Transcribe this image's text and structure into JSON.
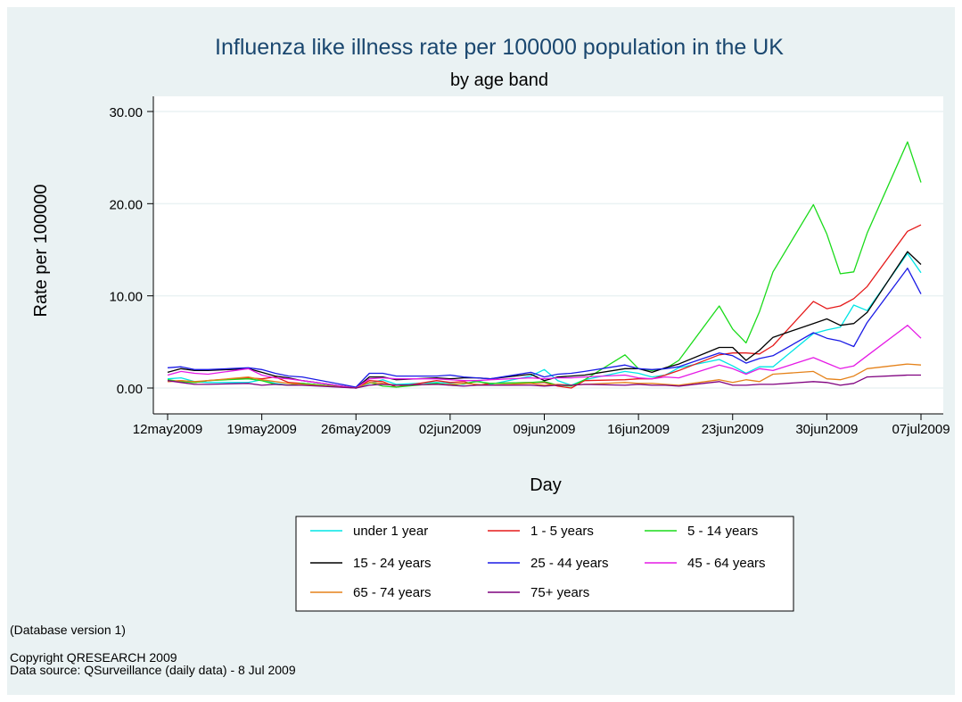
{
  "chart_data": {
    "type": "line",
    "title": "Influenza like illness rate per 100000 population in the UK",
    "subtitle": "by age band",
    "xlabel": "Day",
    "ylabel": "Rate per 100000",
    "ylim": [
      0,
      30
    ],
    "yticks": [
      "0.00",
      "10.00",
      "20.00",
      "30.00"
    ],
    "yticks_values": [
      0,
      10,
      20,
      30
    ],
    "xlim": [
      "2009-05-12",
      "2009-07-07"
    ],
    "xticks": [
      "12may2009",
      "19may2009",
      "26may2009",
      "02jun2009",
      "09jun2009",
      "16jun2009",
      "23jun2009",
      "30jun2009",
      "07jul2009"
    ],
    "grid": "horizontal",
    "legend_position": "bottom",
    "x": [
      "2009-05-12",
      "2009-05-13",
      "2009-05-14",
      "2009-05-15",
      "2009-05-18",
      "2009-05-19",
      "2009-05-20",
      "2009-05-21",
      "2009-05-22",
      "2009-05-26",
      "2009-05-27",
      "2009-05-28",
      "2009-05-29",
      "2009-06-01",
      "2009-06-02",
      "2009-06-03",
      "2009-06-04",
      "2009-06-05",
      "2009-06-08",
      "2009-06-09",
      "2009-06-10",
      "2009-06-11",
      "2009-06-12",
      "2009-06-15",
      "2009-06-16",
      "2009-06-17",
      "2009-06-18",
      "2009-06-19",
      "2009-06-22",
      "2009-06-23",
      "2009-06-24",
      "2009-06-25",
      "2009-06-26",
      "2009-06-29",
      "2009-06-30",
      "2009-07-01",
      "2009-07-02",
      "2009-07-03",
      "2009-07-06",
      "2009-07-07"
    ],
    "series": [
      {
        "name": "under 1 year",
        "color": "#00e5e5",
        "values": [
          1.0,
          1.1,
          0.7,
          0.6,
          0.6,
          0.9,
          0.5,
          0.3,
          0.5,
          0.0,
          0.5,
          0.9,
          0.4,
          0.6,
          0.5,
          0.4,
          0.8,
          0.4,
          1.3,
          2.0,
          0.8,
          0.3,
          0.9,
          1.8,
          1.6,
          1.2,
          1.4,
          2.2,
          3.1,
          2.4,
          1.6,
          2.3,
          2.3,
          5.9,
          6.3,
          6.6,
          9.0,
          8.4,
          14.6,
          12.5
        ]
      },
      {
        "name": "1 - 5 years",
        "color": "#e51a1a",
        "values": [
          0.7,
          0.8,
          0.6,
          0.8,
          1.1,
          1.0,
          1.2,
          0.6,
          0.5,
          0.0,
          0.8,
          0.7,
          0.1,
          0.8,
          0.6,
          0.7,
          0.3,
          0.5,
          0.6,
          0.6,
          0.2,
          0.0,
          0.8,
          0.9,
          1.0,
          1.0,
          1.4,
          1.9,
          3.6,
          3.8,
          3.8,
          3.7,
          4.6,
          9.4,
          8.6,
          8.9,
          9.7,
          11.0,
          17.0,
          17.7
        ]
      },
      {
        "name": "5 - 14 years",
        "color": "#1adb1a",
        "values": [
          0.9,
          0.7,
          0.6,
          0.8,
          1.0,
          0.8,
          0.4,
          0.3,
          0.5,
          0.0,
          0.6,
          0.2,
          0.1,
          0.5,
          0.3,
          0.5,
          0.7,
          0.5,
          0.6,
          0.7,
          0.3,
          0.2,
          0.9,
          3.6,
          2.1,
          1.9,
          2.1,
          3.0,
          8.9,
          6.4,
          4.9,
          8.3,
          12.6,
          19.9,
          16.7,
          12.4,
          12.6,
          16.8,
          26.7,
          22.3
        ]
      },
      {
        "name": "15 - 24 years",
        "color": "#000000",
        "values": [
          1.7,
          2.1,
          1.9,
          1.9,
          2.1,
          1.7,
          1.3,
          1.1,
          0.8,
          0.0,
          1.2,
          1.2,
          0.9,
          1.1,
          1.0,
          1.1,
          1.1,
          1.0,
          1.5,
          0.8,
          1.2,
          1.3,
          1.4,
          2.1,
          2.1,
          1.7,
          2.2,
          2.6,
          4.4,
          4.4,
          3.0,
          4.1,
          5.5,
          7.0,
          7.5,
          6.8,
          7.0,
          8.2,
          14.8,
          13.4
        ]
      },
      {
        "name": "25 - 44 years",
        "color": "#1a1ae5",
        "values": [
          2.2,
          2.3,
          2.0,
          2.0,
          2.2,
          2.0,
          1.6,
          1.3,
          1.2,
          0.1,
          1.6,
          1.6,
          1.3,
          1.3,
          1.4,
          1.2,
          1.1,
          1.0,
          1.7,
          1.2,
          1.5,
          1.6,
          1.8,
          2.5,
          2.1,
          2.0,
          2.1,
          2.3,
          3.8,
          3.5,
          2.7,
          3.2,
          3.5,
          6.0,
          5.4,
          5.1,
          4.5,
          7.1,
          13.0,
          10.2
        ]
      },
      {
        "name": "45 - 64 years",
        "color": "#e51ae5",
        "values": [
          1.4,
          1.8,
          1.6,
          1.5,
          2.1,
          1.4,
          1.1,
          1.0,
          0.8,
          0.0,
          1.0,
          1.1,
          1.0,
          1.0,
          0.9,
          0.8,
          0.8,
          0.9,
          1.1,
          1.0,
          1.1,
          1.1,
          1.2,
          1.4,
          1.1,
          1.0,
          1.2,
          1.1,
          2.5,
          2.1,
          1.5,
          2.1,
          1.9,
          3.3,
          2.7,
          2.1,
          2.4,
          3.5,
          6.8,
          5.4
        ]
      },
      {
        "name": "65 - 74 years",
        "color": "#e5821a",
        "values": [
          0.7,
          0.8,
          0.7,
          0.8,
          1.2,
          0.9,
          0.7,
          0.5,
          0.4,
          0.0,
          0.6,
          0.5,
          0.3,
          0.4,
          0.4,
          0.5,
          0.4,
          0.3,
          0.5,
          0.3,
          0.4,
          0.3,
          0.4,
          0.6,
          0.5,
          0.5,
          0.4,
          0.3,
          0.9,
          0.6,
          0.9,
          0.7,
          1.5,
          1.8,
          1.0,
          0.9,
          1.3,
          2.1,
          2.6,
          2.5
        ]
      },
      {
        "name": "75+ years",
        "color": "#7f007f",
        "values": [
          0.8,
          0.6,
          0.4,
          0.4,
          0.5,
          0.3,
          0.4,
          0.3,
          0.3,
          0.0,
          0.3,
          0.4,
          0.3,
          0.4,
          0.3,
          0.2,
          0.3,
          0.3,
          0.3,
          0.2,
          0.3,
          0.3,
          0.4,
          0.3,
          0.4,
          0.3,
          0.3,
          0.2,
          0.7,
          0.3,
          0.3,
          0.4,
          0.4,
          0.7,
          0.6,
          0.3,
          0.5,
          1.2,
          1.4,
          1.4
        ]
      }
    ]
  },
  "notes": {
    "database_version": "(Database version 1)",
    "copyright": "Copyright QRESEARCH 2009",
    "source": "Data source: QSurveillance (daily data) - 8 Jul 2009"
  }
}
